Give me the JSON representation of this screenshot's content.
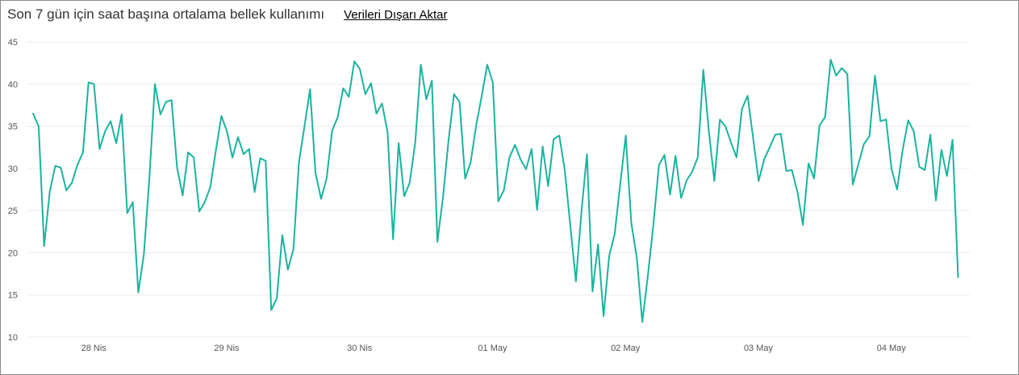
{
  "header": {
    "title": "Son 7 gün için saat başına ortalama bellek kullanımı",
    "export_label": "Verileri Dışarı Aktar"
  },
  "colors": {
    "line": "#1ab39f",
    "grid": "#ececec",
    "axis_text": "#555555"
  },
  "chart_data": {
    "type": "line",
    "title": "Son 7 gün için saat başına ortalama bellek kullanımı",
    "xlabel": "",
    "ylabel": "",
    "ylim": [
      10,
      45
    ],
    "yticks": [
      10,
      15,
      20,
      25,
      30,
      35,
      40,
      45
    ],
    "grid": true,
    "x_tick_labels": [
      "28 Nis",
      "29 Nis",
      "30 Nis",
      "01 May",
      "02 May",
      "03 May",
      "04 May"
    ],
    "x_start": "27 Nis 18:00",
    "x_step": "1 saat",
    "series": [
      {
        "values": [
          36.5,
          35,
          20.8,
          27.2,
          30.3,
          30.1,
          27.4,
          28.3,
          30.4,
          31.9,
          40.2,
          40,
          32.3,
          34.4,
          35.6,
          33,
          36.4,
          24.7,
          26,
          15.3,
          19.8,
          28.9,
          40,
          36.4,
          37.9,
          38.1,
          30.1,
          26.8,
          31.9,
          31.3,
          24.9,
          26,
          27.8,
          32.1,
          36.2,
          34.4,
          31.3,
          33.7,
          31.7,
          32.3,
          27.2,
          31.2,
          30.9,
          13.2,
          14.6,
          22.1,
          18,
          20.4,
          30.7,
          35,
          39.4,
          29.4,
          26.4,
          28.8,
          34.5,
          36.1,
          39.5,
          38.5,
          42.7,
          41.8,
          38.8,
          40.1,
          36.5,
          37.7,
          34.3,
          21.6,
          33,
          26.7,
          28.3,
          33.1,
          42.3,
          38.2,
          40.4,
          21.3,
          26.5,
          33.3,
          38.8,
          37.9,
          28.8,
          30.7,
          35.1,
          38.6,
          42.3,
          40.2,
          26.1,
          27.4,
          31.3,
          32.8,
          31.1,
          29.9,
          32.3,
          25.1,
          32.6,
          27.9,
          33.5,
          33.9,
          29.8,
          23.2,
          16.6,
          24.8,
          31.7,
          15.4,
          21,
          12.5,
          19.6,
          22.2,
          28.1,
          33.9,
          23.6,
          19.4,
          11.8,
          17.3,
          23.4,
          30.4,
          31.6,
          26.9,
          31.5,
          26.5,
          28.6,
          29.6,
          31.3,
          41.7,
          34.5,
          28.5,
          35.8,
          35,
          33.1,
          31.3,
          37.1,
          38.6,
          33.6,
          28.5,
          31.1,
          32.5,
          34,
          34.1,
          29.7,
          29.8,
          27.2,
          23.3,
          30.6,
          28.8,
          35.1,
          36.1,
          42.9,
          41,
          41.9,
          41.2,
          28.1,
          30.5,
          32.9,
          33.8,
          41,
          35.6,
          35.8,
          29.9,
          27.5,
          32.2,
          35.7,
          34.4,
          30.2,
          29.8,
          34,
          26.2,
          32.2,
          29.1,
          33.4,
          17.1
        ]
      }
    ]
  }
}
